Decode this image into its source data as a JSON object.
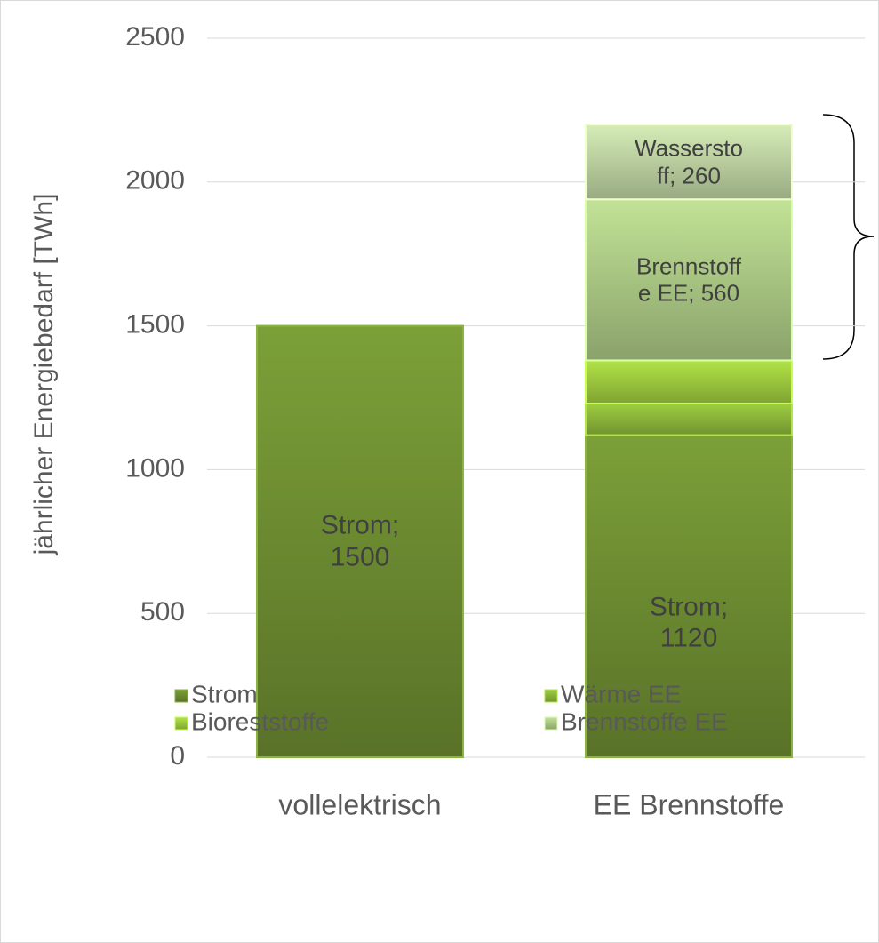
{
  "chart_data": {
    "type": "stacked_bar",
    "y_label": "jährlicher Energiebedarf [TWh]",
    "categories": [
      "vollelektrisch",
      "EE Brennstoffe"
    ],
    "series": [
      {
        "name": "Strom",
        "color": "#6f8f32",
        "values": [
          1500,
          1120
        ],
        "value_labels": [
          "Strom;\n1500",
          "Strom;\n1120"
        ]
      },
      {
        "name": "Wärme EE",
        "color": "#8db83a",
        "values": [
          null,
          110
        ],
        "value_labels": [
          null,
          null
        ]
      },
      {
        "name": "Bioreststoffe",
        "color": "#9fcc3f",
        "values": [
          null,
          150
        ],
        "value_labels": [
          null,
          null
        ]
      },
      {
        "name": "Brennstoffe EE",
        "color": "#adcb86",
        "values": [
          null,
          560
        ],
        "value_labels": [
          null,
          "Brennstoff\ne EE; 560"
        ]
      },
      {
        "name": "Wasserstoff",
        "color": "#bfd4a3",
        "values": [
          null,
          260
        ],
        "value_labels": [
          null,
          "Wassersto\nff; 260"
        ],
        "in_legend": false
      }
    ],
    "ylim": [
      0,
      2500
    ],
    "yticks": [
      0,
      500,
      1000,
      1500,
      2000,
      2500
    ],
    "grid": true
  }
}
